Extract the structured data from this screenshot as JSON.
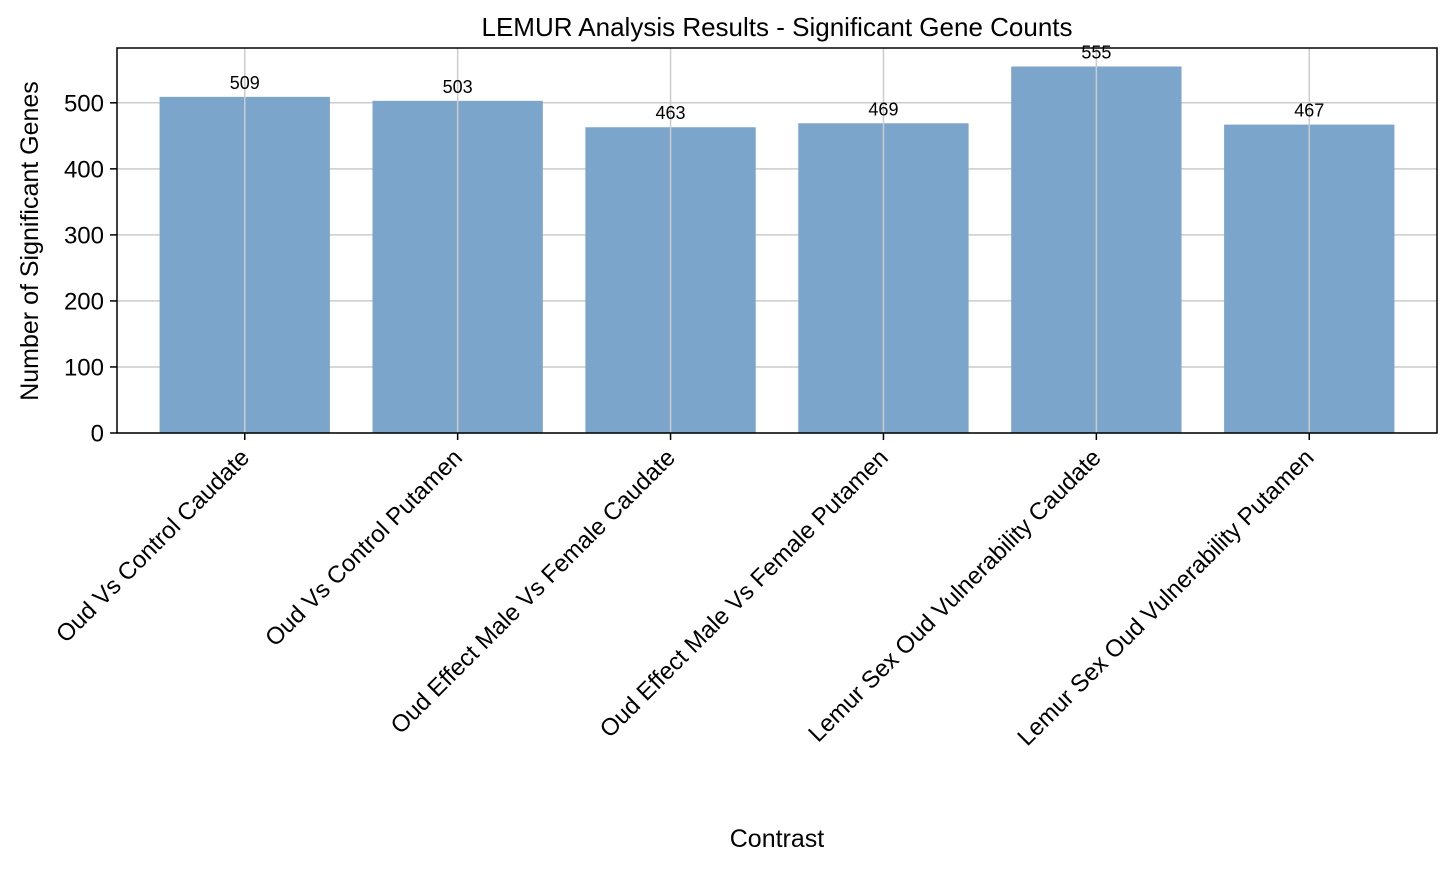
{
  "chart_data": {
    "type": "bar",
    "title": "LEMUR Analysis Results - Significant Gene Counts",
    "xlabel": "Contrast",
    "ylabel": "Number of Significant Genes",
    "categories": [
      "Oud Vs Control Caudate",
      "Oud Vs Control Putamen",
      "Oud Effect Male Vs Female Caudate",
      "Oud Effect Male Vs Female Putamen",
      "Lemur Sex Oud Vulnerability Caudate",
      "Lemur Sex Oud Vulnerability Putamen"
    ],
    "values": [
      509,
      503,
      463,
      469,
      555,
      467
    ],
    "data_labels": [
      "509",
      "503",
      "463",
      "469",
      "555",
      "467"
    ],
    "ylim": [
      0,
      583
    ],
    "yticks": [
      0,
      100,
      200,
      300,
      400,
      500
    ],
    "ytick_labels": [
      "0",
      "100",
      "200",
      "300",
      "400",
      "500"
    ],
    "grid": true,
    "bar_color": "#7ba5ca",
    "grid_color": "#cccccc"
  }
}
